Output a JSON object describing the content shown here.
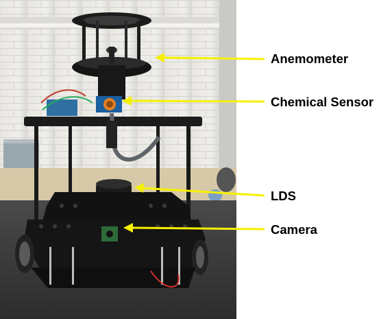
{
  "figure": {
    "labels": {
      "anemometer": "Anemometer",
      "chemical_sensor": "Chemical Sensor",
      "lds": "LDS",
      "camera": "Camera"
    },
    "arrow_color": "#f5f000"
  }
}
